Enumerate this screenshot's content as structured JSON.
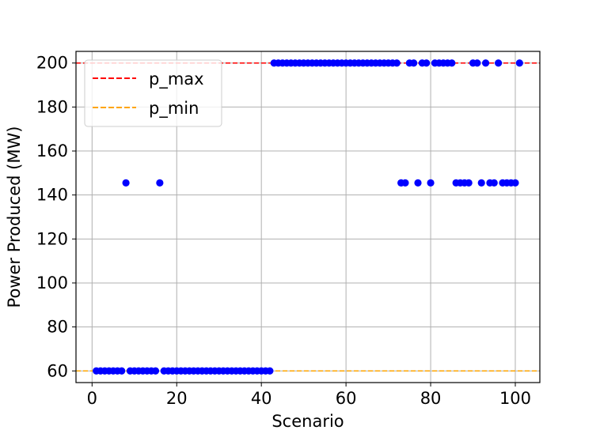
{
  "chart_data": {
    "type": "scatter",
    "title": "",
    "xlabel": "Scenario",
    "ylabel": "Power Produced (MW)",
    "xlim": [
      -3.8,
      105.8
    ],
    "ylim": [
      54.7,
      205.3
    ],
    "xticks": [
      0,
      20,
      40,
      60,
      80,
      100
    ],
    "yticks": [
      60,
      80,
      100,
      120,
      140,
      160,
      180,
      200
    ],
    "grid": true,
    "legend_position": "upper-left",
    "series": [
      {
        "type": "scatter",
        "color": "#0000ff",
        "points": [
          [
            1,
            60
          ],
          [
            2,
            60
          ],
          [
            3,
            60
          ],
          [
            4,
            60
          ],
          [
            5,
            60
          ],
          [
            6,
            60
          ],
          [
            7,
            60
          ],
          [
            8,
            145.5
          ],
          [
            9,
            60
          ],
          [
            10,
            60
          ],
          [
            11,
            60
          ],
          [
            12,
            60
          ],
          [
            13,
            60
          ],
          [
            14,
            60
          ],
          [
            15,
            60
          ],
          [
            16,
            145.5
          ],
          [
            17,
            60
          ],
          [
            18,
            60
          ],
          [
            19,
            60
          ],
          [
            20,
            60
          ],
          [
            21,
            60
          ],
          [
            22,
            60
          ],
          [
            23,
            60
          ],
          [
            24,
            60
          ],
          [
            25,
            60
          ],
          [
            26,
            60
          ],
          [
            27,
            60
          ],
          [
            28,
            60
          ],
          [
            29,
            60
          ],
          [
            30,
            60
          ],
          [
            31,
            60
          ],
          [
            32,
            60
          ],
          [
            33,
            60
          ],
          [
            34,
            60
          ],
          [
            35,
            60
          ],
          [
            36,
            60
          ],
          [
            37,
            60
          ],
          [
            38,
            60
          ],
          [
            39,
            60
          ],
          [
            40,
            60
          ],
          [
            41,
            60
          ],
          [
            42,
            60
          ],
          [
            43,
            200
          ],
          [
            44,
            200
          ],
          [
            45,
            200
          ],
          [
            46,
            200
          ],
          [
            47,
            200
          ],
          [
            48,
            200
          ],
          [
            49,
            200
          ],
          [
            50,
            200
          ],
          [
            51,
            200
          ],
          [
            52,
            200
          ],
          [
            53,
            200
          ],
          [
            54,
            200
          ],
          [
            55,
            200
          ],
          [
            56,
            200
          ],
          [
            57,
            200
          ],
          [
            58,
            200
          ],
          [
            59,
            200
          ],
          [
            60,
            200
          ],
          [
            61,
            200
          ],
          [
            62,
            200
          ],
          [
            63,
            200
          ],
          [
            64,
            200
          ],
          [
            65,
            200
          ],
          [
            66,
            200
          ],
          [
            67,
            200
          ],
          [
            68,
            200
          ],
          [
            69,
            200
          ],
          [
            70,
            200
          ],
          [
            71,
            200
          ],
          [
            72,
            200
          ],
          [
            73,
            145.5
          ],
          [
            74,
            145.5
          ],
          [
            75,
            200
          ],
          [
            76,
            200
          ],
          [
            77,
            145.5
          ],
          [
            78,
            200
          ],
          [
            79,
            200
          ],
          [
            80,
            145.5
          ],
          [
            81,
            200
          ],
          [
            82,
            200
          ],
          [
            83,
            200
          ],
          [
            84,
            200
          ],
          [
            85,
            200
          ],
          [
            86,
            145.5
          ],
          [
            87,
            145.5
          ],
          [
            88,
            145.5
          ],
          [
            89,
            145.5
          ],
          [
            90,
            200
          ],
          [
            91,
            200
          ],
          [
            92,
            145.5
          ],
          [
            93,
            200
          ],
          [
            94,
            145.5
          ],
          [
            95,
            145.5
          ],
          [
            96,
            200
          ],
          [
            97,
            145.5
          ],
          [
            98,
            145.5
          ],
          [
            99,
            145.5
          ],
          [
            100,
            145.5
          ],
          [
            101,
            200
          ]
        ]
      },
      {
        "name": "p_max",
        "type": "hline",
        "y": 200,
        "color": "#ff0000",
        "style": "dashed"
      },
      {
        "name": "p_min",
        "type": "hline",
        "y": 60,
        "color": "#ffa500",
        "style": "dashed"
      }
    ]
  }
}
